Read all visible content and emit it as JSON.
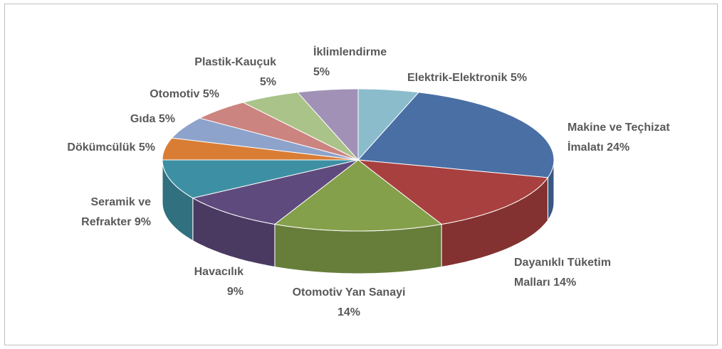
{
  "chart_data": {
    "type": "pie3d",
    "categories": [
      "Elektrik-Elektronik",
      "Makine ve Teçhizat İmalatı",
      "Dayanıklı Tüketim Malları",
      "Otomotiv Yan Sanayi",
      "Havacılık",
      "Seramik ve Refrakter",
      "Dökümcülük",
      "Gıda",
      "Otomotiv",
      "Plastik-Kauçuk",
      "İklimlendirme"
    ],
    "values": [
      5,
      24,
      14,
      14,
      9,
      9,
      5,
      5,
      5,
      5,
      5
    ],
    "value_labels": [
      "5%",
      "24%",
      "14%",
      "14%",
      "9%",
      "9%",
      "5%",
      "5%",
      "5%",
      "5%",
      "5%"
    ],
    "colors": [
      "#8bbccc",
      "#4a6fa5",
      "#a8403f",
      "#84a04a",
      "#5f4a7d",
      "#3d90a3",
      "#d97d35",
      "#8ea3cb",
      "#cc8480",
      "#aac389",
      "#a291b6"
    ]
  }
}
